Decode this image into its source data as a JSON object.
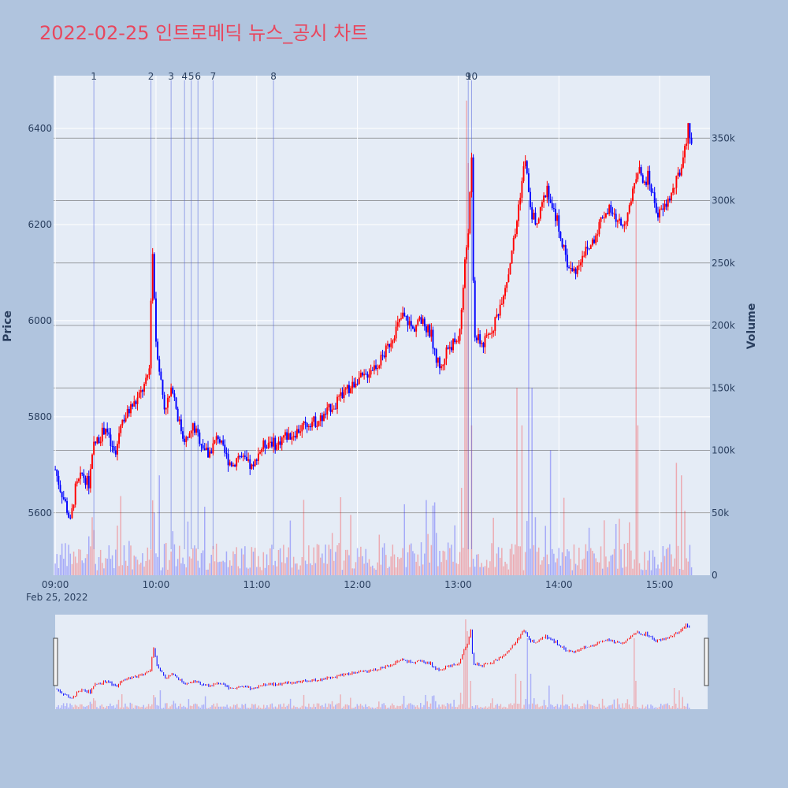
{
  "chart_data": {
    "type": "candlestick",
    "title": "2022-02-25 인트로메딕 뉴스_공시 차트",
    "ylabel": "Price",
    "y2label": "Volume",
    "ylim": [
      5470,
      6510
    ],
    "y2lim": [
      0,
      400000
    ],
    "price_ticks": [
      "5600",
      "5800",
      "6000",
      "6200",
      "6400"
    ],
    "volume_ticks": [
      {
        "v": 0,
        "label": "0"
      },
      {
        "v": 50000,
        "label": "50k"
      },
      {
        "v": 100000,
        "label": "100k"
      },
      {
        "v": 150000,
        "label": "150k"
      },
      {
        "v": 200000,
        "label": "200k"
      },
      {
        "v": 250000,
        "label": "250k"
      },
      {
        "v": 300000,
        "label": "300k"
      },
      {
        "v": 350000,
        "label": "350k"
      }
    ],
    "time_ticks": [
      {
        "t": "09:00",
        "label": "09:00"
      },
      {
        "t": "10:00",
        "label": "10:00"
      },
      {
        "t": "11:00",
        "label": "11:00"
      },
      {
        "t": "12:00",
        "label": "12:00"
      },
      {
        "t": "13:00",
        "label": "13:00"
      },
      {
        "t": "14:00",
        "label": "14:00"
      },
      {
        "t": "15:00",
        "label": "15:00"
      }
    ],
    "date_label": "Feb 25, 2022",
    "x_range": [
      "08:59",
      "15:30"
    ],
    "up_color": "#ff0000",
    "down_color": "#0000ff",
    "price_path": [
      [
        "09:00",
        5690
      ],
      [
        "09:03",
        5650
      ],
      [
        "09:06",
        5620
      ],
      [
        "09:09",
        5580
      ],
      [
        "09:12",
        5650
      ],
      [
        "09:16",
        5680
      ],
      [
        "09:20",
        5660
      ],
      [
        "09:23",
        5740
      ],
      [
        "09:27",
        5760
      ],
      [
        "09:30",
        5780
      ],
      [
        "09:33",
        5740
      ],
      [
        "09:36",
        5720
      ],
      [
        "09:39",
        5790
      ],
      [
        "09:42",
        5800
      ],
      [
        "09:45",
        5820
      ],
      [
        "09:48",
        5830
      ],
      [
        "09:51",
        5850
      ],
      [
        "09:54",
        5870
      ],
      [
        "09:56",
        5900
      ],
      [
        "09:57",
        6050
      ],
      [
        "09:58",
        6140
      ],
      [
        "10:00",
        5960
      ],
      [
        "10:02",
        5900
      ],
      [
        "10:05",
        5820
      ],
      [
        "10:08",
        5840
      ],
      [
        "10:10",
        5860
      ],
      [
        "10:13",
        5800
      ],
      [
        "10:16",
        5760
      ],
      [
        "10:19",
        5750
      ],
      [
        "10:22",
        5780
      ],
      [
        "10:25",
        5760
      ],
      [
        "10:28",
        5740
      ],
      [
        "10:31",
        5720
      ],
      [
        "10:34",
        5740
      ],
      [
        "10:37",
        5760
      ],
      [
        "10:40",
        5730
      ],
      [
        "10:43",
        5710
      ],
      [
        "10:46",
        5700
      ],
      [
        "10:49",
        5720
      ],
      [
        "10:52",
        5710
      ],
      [
        "10:55",
        5700
      ],
      [
        "10:58",
        5690
      ],
      [
        "11:00",
        5720
      ],
      [
        "11:04",
        5740
      ],
      [
        "11:08",
        5750
      ],
      [
        "11:12",
        5740
      ],
      [
        "11:16",
        5760
      ],
      [
        "11:20",
        5760
      ],
      [
        "11:24",
        5770
      ],
      [
        "11:28",
        5780
      ],
      [
        "11:32",
        5790
      ],
      [
        "11:36",
        5790
      ],
      [
        "11:40",
        5800
      ],
      [
        "11:44",
        5820
      ],
      [
        "11:48",
        5830
      ],
      [
        "11:52",
        5850
      ],
      [
        "11:56",
        5860
      ],
      [
        "12:00",
        5880
      ],
      [
        "12:04",
        5880
      ],
      [
        "12:08",
        5900
      ],
      [
        "12:12",
        5910
      ],
      [
        "12:16",
        5930
      ],
      [
        "12:20",
        5960
      ],
      [
        "12:24",
        5990
      ],
      [
        "12:27",
        6010
      ],
      [
        "12:30",
        6000
      ],
      [
        "12:33",
        5980
      ],
      [
        "12:36",
        6000
      ],
      [
        "12:40",
        5990
      ],
      [
        "12:44",
        5970
      ],
      [
        "12:47",
        5920
      ],
      [
        "12:50",
        5900
      ],
      [
        "12:53",
        5940
      ],
      [
        "12:56",
        5950
      ],
      [
        "13:00",
        5960
      ],
      [
        "13:02",
        6020
      ],
      [
        "13:04",
        6120
      ],
      [
        "13:06",
        6190
      ],
      [
        "13:08",
        6330
      ],
      [
        "13:09",
        6080
      ],
      [
        "13:10",
        5970
      ],
      [
        "13:12",
        5960
      ],
      [
        "13:15",
        5950
      ],
      [
        "13:18",
        5970
      ],
      [
        "13:21",
        5990
      ],
      [
        "13:24",
        6020
      ],
      [
        "13:27",
        6060
      ],
      [
        "13:30",
        6100
      ],
      [
        "13:32",
        6150
      ],
      [
        "13:34",
        6180
      ],
      [
        "13:36",
        6240
      ],
      [
        "13:38",
        6290
      ],
      [
        "13:40",
        6340
      ],
      [
        "13:42",
        6260
      ],
      [
        "13:44",
        6220
      ],
      [
        "13:47",
        6200
      ],
      [
        "13:50",
        6240
      ],
      [
        "13:53",
        6280
      ],
      [
        "13:56",
        6230
      ],
      [
        "13:59",
        6210
      ],
      [
        "14:02",
        6160
      ],
      [
        "14:05",
        6120
      ],
      [
        "14:08",
        6100
      ],
      [
        "14:11",
        6110
      ],
      [
        "14:14",
        6140
      ],
      [
        "14:18",
        6150
      ],
      [
        "14:22",
        6180
      ],
      [
        "14:26",
        6220
      ],
      [
        "14:30",
        6230
      ],
      [
        "14:34",
        6210
      ],
      [
        "14:38",
        6200
      ],
      [
        "14:42",
        6230
      ],
      [
        "14:46",
        6300
      ],
      [
        "14:48",
        6330
      ],
      [
        "14:50",
        6280
      ],
      [
        "14:53",
        6300
      ],
      [
        "14:56",
        6260
      ],
      [
        "14:59",
        6220
      ],
      [
        "15:02",
        6230
      ],
      [
        "15:05",
        6250
      ],
      [
        "15:08",
        6270
      ],
      [
        "15:11",
        6300
      ],
      [
        "15:14",
        6330
      ],
      [
        "15:17",
        6400
      ],
      [
        "15:19",
        6380
      ]
    ],
    "volume_spikes": [
      [
        "09:58",
        60000
      ],
      [
        "09:59",
        50000
      ],
      [
        "10:02",
        80000
      ],
      [
        "13:02",
        70000
      ],
      [
        "13:04",
        230000
      ],
      [
        "13:05",
        380000
      ],
      [
        "13:06",
        330000
      ],
      [
        "13:08",
        120000
      ],
      [
        "13:35",
        150000
      ],
      [
        "13:38",
        120000
      ],
      [
        "13:42",
        300000
      ],
      [
        "13:44",
        150000
      ],
      [
        "13:55",
        100000
      ],
      [
        "14:46",
        300000
      ],
      [
        "14:47",
        120000
      ],
      [
        "15:10",
        90000
      ],
      [
        "15:13",
        80000
      ]
    ],
    "news": [
      {
        "label": "1",
        "t": "09:23"
      },
      {
        "label": "2",
        "t": "09:57"
      },
      {
        "label": "3",
        "t": "10:09"
      },
      {
        "label": "4",
        "t": "10:17"
      },
      {
        "label": "5",
        "t": "10:21"
      },
      {
        "label": "6",
        "t": "10:25"
      },
      {
        "label": "7",
        "t": "10:34"
      },
      {
        "label": "8",
        "t": "11:10"
      },
      {
        "label": "9",
        "t": "13:06"
      },
      {
        "label": "10",
        "t": "13:08"
      }
    ]
  }
}
